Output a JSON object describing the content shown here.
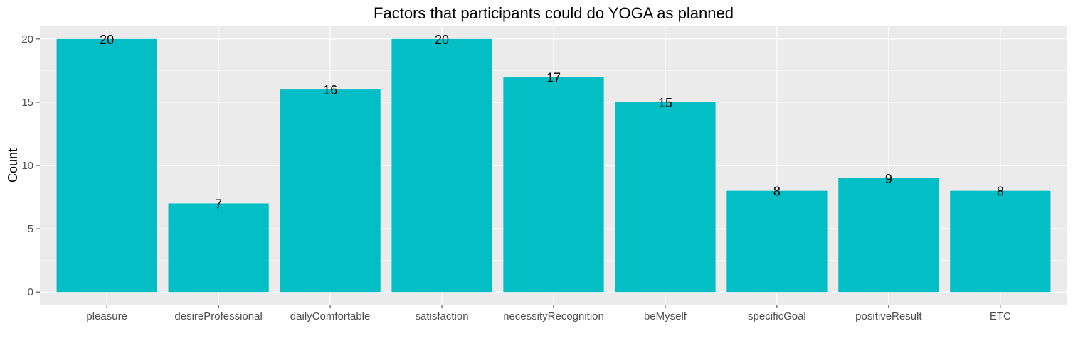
{
  "chart_data": {
    "type": "bar",
    "title": "Factors that participants could do YOGA as planned",
    "xlabel": "",
    "ylabel": "Count",
    "categories": [
      "pleasure",
      "desireProfessional",
      "dailyComfortable",
      "satisfaction",
      "necessityRecognition",
      "beMyself",
      "specificGoal",
      "positiveResult",
      "ETC"
    ],
    "values": [
      20,
      7,
      16,
      20,
      17,
      15,
      8,
      9,
      8
    ],
    "ylim": [
      -1,
      21
    ],
    "yticks": [
      0,
      5,
      10,
      15,
      20
    ],
    "grid": true,
    "legend": "none",
    "colors": {
      "bar": "#04BEC6",
      "panel_background": "#EBEBEB",
      "grid_major": "#FFFFFF",
      "tick_mark": "#333333"
    }
  }
}
